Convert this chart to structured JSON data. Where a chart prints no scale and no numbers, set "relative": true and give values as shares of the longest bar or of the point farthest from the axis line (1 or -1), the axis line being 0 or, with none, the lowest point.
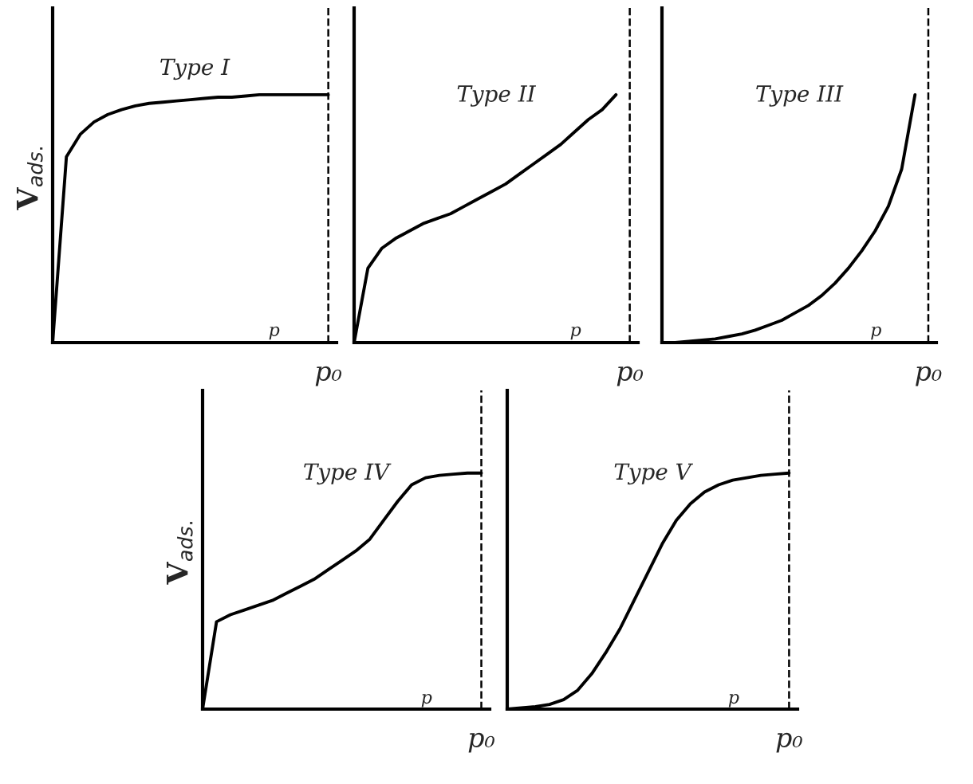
{
  "chart_data": [
    {
      "type": "line",
      "relative": true,
      "ylabel": "V$_{ads.}$",
      "xlabel": "p",
      "annotations": [
        "Type I"
      ],
      "categories": [
        null,
        null,
        null,
        null,
        null,
        null,
        null,
        null,
        null,
        null,
        null,
        null,
        null,
        null,
        null,
        null,
        null,
        null,
        null,
        null,
        null
      ],
      "series": [
        {
          "color": "#000000",
          "values": [
            0,
            0.75,
            0.84,
            0.89,
            0.92,
            0.94,
            0.955,
            0.965,
            0.97,
            0.975,
            0.98,
            0.985,
            0.99,
            0.99,
            0.995,
            1,
            1,
            1,
            1,
            1,
            1
          ]
        }
      ],
      "ref_lines": [
        {
          "axis": "x",
          "label": "p₀",
          "line_style": "dashed"
        }
      ]
    },
    {
      "type": "line",
      "relative": true,
      "xlabel": "p",
      "annotations": [
        "Type II"
      ],
      "categories": [
        null,
        null,
        null,
        null,
        null,
        null,
        null,
        null,
        null,
        null,
        null,
        null,
        null,
        null,
        null,
        null,
        null,
        null,
        null,
        null,
        null
      ],
      "series": [
        {
          "color": "#000000",
          "values": [
            0,
            0.3,
            0.38,
            0.42,
            0.45,
            0.48,
            0.5,
            0.52,
            0.55,
            0.58,
            0.61,
            0.64,
            0.68,
            0.72,
            0.76,
            0.8,
            0.85,
            0.9,
            0.94,
            1,
            null
          ]
        }
      ],
      "ref_lines": [
        {
          "axis": "x",
          "label": "p₀",
          "line_style": "dashed"
        }
      ]
    },
    {
      "type": "line",
      "relative": true,
      "xlabel": "p",
      "annotations": [
        "Type III"
      ],
      "categories": [
        null,
        null,
        null,
        null,
        null,
        null,
        null,
        null,
        null,
        null,
        null,
        null,
        null,
        null,
        null,
        null,
        null,
        null,
        null,
        null,
        null
      ],
      "series": [
        {
          "color": "#000000",
          "values": [
            0,
            0,
            0.005,
            0.01,
            0.015,
            0.025,
            0.035,
            0.05,
            0.07,
            0.09,
            0.12,
            0.15,
            0.19,
            0.24,
            0.3,
            0.37,
            0.45,
            0.55,
            0.7,
            1,
            null
          ]
        }
      ],
      "ref_lines": [
        {
          "axis": "x",
          "label": "p₀",
          "line_style": "dashed"
        }
      ]
    },
    {
      "type": "line",
      "relative": true,
      "ylabel": "V$_{ads.}$",
      "xlabel": "p",
      "annotations": [
        "Type IV"
      ],
      "categories": [
        null,
        null,
        null,
        null,
        null,
        null,
        null,
        null,
        null,
        null,
        null,
        null,
        null,
        null,
        null,
        null,
        null,
        null,
        null,
        null,
        null
      ],
      "series": [
        {
          "color": "#000000",
          "values": [
            0,
            0.37,
            0.4,
            0.42,
            0.44,
            0.46,
            0.49,
            0.52,
            0.55,
            0.59,
            0.63,
            0.67,
            0.72,
            0.8,
            0.88,
            0.95,
            0.98,
            0.99,
            0.995,
            1,
            1
          ]
        }
      ],
      "ref_lines": [
        {
          "axis": "x",
          "label": "p₀",
          "line_style": "dashed"
        }
      ]
    },
    {
      "type": "line",
      "relative": true,
      "xlabel": "p",
      "annotations": [
        "Type V"
      ],
      "categories": [
        null,
        null,
        null,
        null,
        null,
        null,
        null,
        null,
        null,
        null,
        null,
        null,
        null,
        null,
        null,
        null,
        null,
        null,
        null,
        null,
        null
      ],
      "series": [
        {
          "color": "#000000",
          "values": [
            0,
            0.005,
            0.01,
            0.02,
            0.04,
            0.08,
            0.15,
            0.24,
            0.34,
            0.46,
            0.58,
            0.7,
            0.8,
            0.87,
            0.92,
            0.95,
            0.97,
            0.98,
            0.99,
            0.995,
            1
          ]
        }
      ],
      "ref_lines": [
        {
          "axis": "x",
          "label": "p₀",
          "line_style": "dashed"
        }
      ]
    }
  ]
}
